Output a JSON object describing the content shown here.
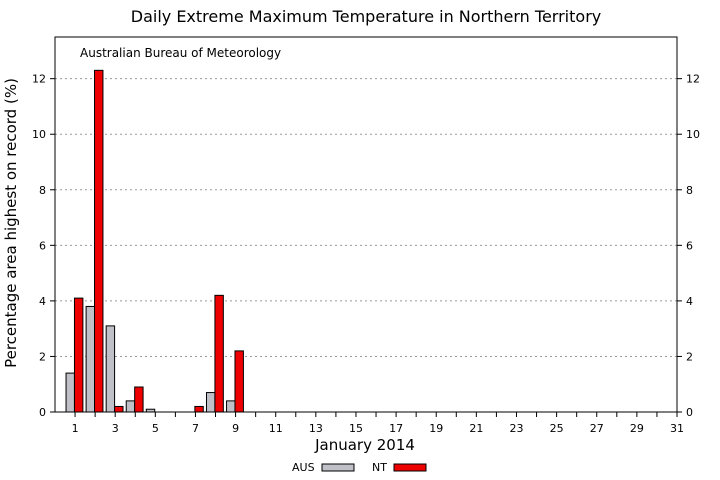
{
  "chart_data": {
    "type": "bar",
    "title": "Daily Extreme Maximum Temperature in Northern Territory",
    "annotation": "Australian Bureau of Meteorology",
    "xlabel": "January 2014",
    "ylabel": "Percentage area highest on record (%)",
    "x": [
      1,
      2,
      3,
      4,
      5,
      6,
      7,
      8,
      9,
      10,
      11,
      12,
      13,
      14,
      15,
      16,
      17,
      18,
      19,
      20,
      21,
      22,
      23,
      24,
      25,
      26,
      27,
      28,
      29,
      30,
      31
    ],
    "xticks": [
      "1",
      "3",
      "5",
      "7",
      "9",
      "11",
      "13",
      "15",
      "17",
      "19",
      "21",
      "23",
      "25",
      "27",
      "29",
      "31"
    ],
    "ylim": [
      0,
      13.5
    ],
    "yticks": [
      0,
      2,
      4,
      6,
      8,
      10,
      12
    ],
    "grid": true,
    "legend_position": "bottom",
    "series": [
      {
        "name": "AUS",
        "color": "#c0c0c8",
        "values": [
          1.4,
          3.8,
          3.1,
          0.4,
          0.1,
          0,
          0,
          0.7,
          0.4,
          0,
          0,
          0,
          0,
          0,
          0,
          0,
          0,
          0,
          0,
          0,
          0,
          0,
          0,
          0,
          0,
          0,
          0,
          0,
          0,
          0,
          0
        ]
      },
      {
        "name": "NT",
        "color": "#ee0000",
        "values": [
          4.1,
          12.3,
          0.2,
          0.9,
          0,
          0,
          0.2,
          4.2,
          2.2,
          0,
          0,
          0,
          0,
          0,
          0,
          0,
          0,
          0,
          0,
          0,
          0,
          0,
          0,
          0,
          0,
          0,
          0,
          0,
          0,
          0,
          0
        ]
      }
    ]
  }
}
